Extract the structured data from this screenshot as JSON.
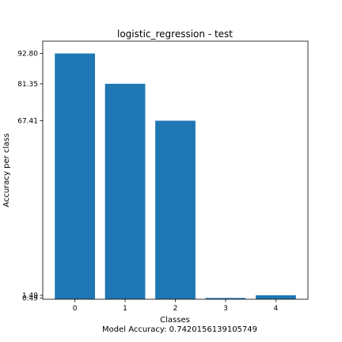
{
  "chart_data": {
    "type": "bar",
    "title": "logistic_regression - test",
    "xlabel": "Classes",
    "ylabel": "Accuracy per class",
    "footer": "Model Accuracy: 0.7420156139105749",
    "categories": [
      "0",
      "1",
      "2",
      "3",
      "4"
    ],
    "values": [
      92.8,
      81.35,
      67.41,
      0.49,
      1.49
    ],
    "ytick_labels": [
      "92.80",
      "81.35",
      "67.41",
      "1.49",
      "0.49"
    ],
    "ylim": [
      0,
      97.44
    ],
    "grid": false,
    "bar_color": "#1f77b4"
  }
}
